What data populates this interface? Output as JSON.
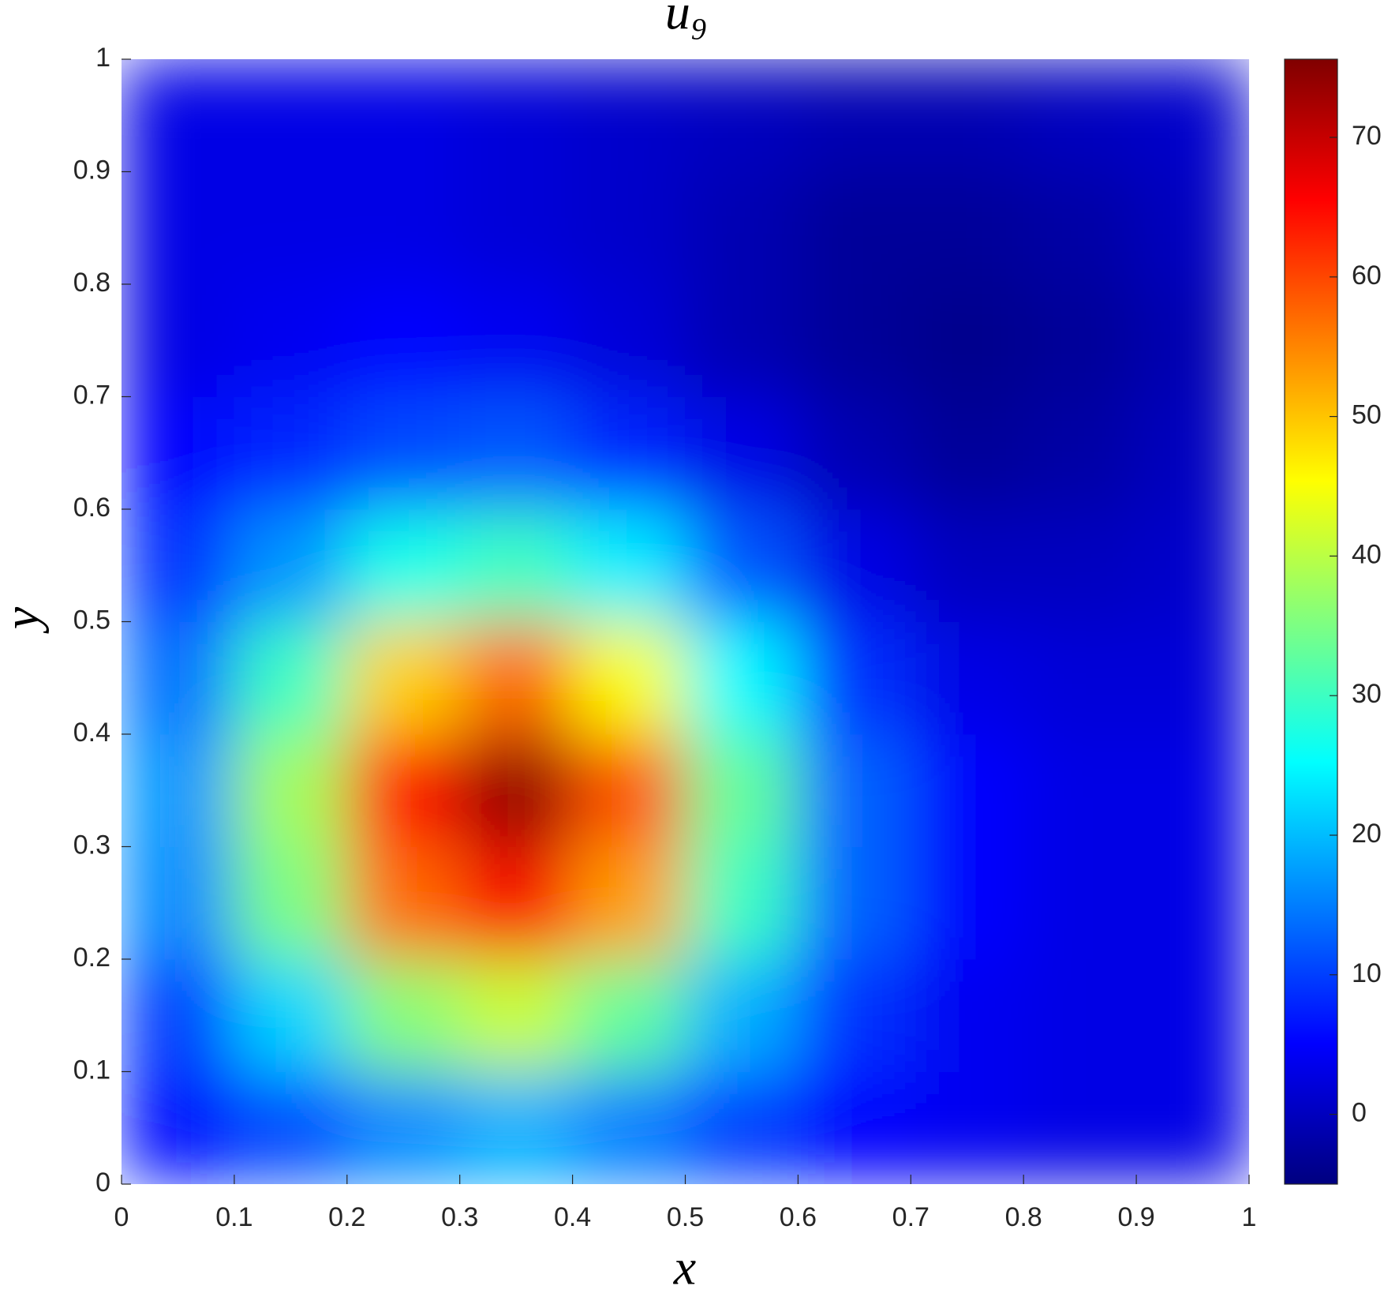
{
  "chart_data": {
    "type": "heatmap",
    "title": "u₉",
    "x_label": "x",
    "y_label": "y",
    "colormap": "jet",
    "x": [
      0.05,
      0.15,
      0.25,
      0.35,
      0.45,
      0.55,
      0.65,
      0.75,
      0.85,
      0.95
    ],
    "y": [
      0.05,
      0.15,
      0.25,
      0.35,
      0.45,
      0.55,
      0.65,
      0.75,
      0.85,
      0.95
    ],
    "z": [
      [
        6,
        11,
        16,
        19,
        15,
        10,
        5,
        4,
        3,
        3
      ],
      [
        10,
        22,
        36,
        41,
        33,
        19,
        9,
        4,
        3,
        3
      ],
      [
        16,
        35,
        57,
        66,
        53,
        30,
        13,
        5,
        3,
        3
      ],
      [
        17,
        38,
        64,
        74,
        59,
        33,
        13,
        5,
        3,
        3
      ],
      [
        14,
        30,
        49,
        57,
        45,
        25,
        9,
        3,
        2,
        2
      ],
      [
        9,
        17,
        27,
        30,
        24,
        12,
        3,
        0,
        0,
        1
      ],
      [
        5,
        8,
        11,
        12,
        8,
        3,
        -1,
        -3,
        -2,
        0
      ],
      [
        3,
        4,
        5,
        4,
        2,
        -1,
        -3,
        -4,
        -3,
        -1
      ],
      [
        3,
        3,
        3,
        2,
        1,
        -1,
        -3,
        -3,
        -2,
        0
      ],
      [
        3,
        3,
        3,
        2,
        1,
        0,
        -1,
        -1,
        0,
        1
      ]
    ],
    "xlim": [
      0,
      1
    ],
    "ylim": [
      0,
      1
    ],
    "xticks": [
      0,
      0.1,
      0.2,
      0.3,
      0.4,
      0.5,
      0.6,
      0.7,
      0.8,
      0.9,
      1
    ],
    "yticks": [
      0,
      0.1,
      0.2,
      0.3,
      0.4,
      0.5,
      0.6,
      0.7,
      0.8,
      0.9,
      1
    ],
    "clim": [
      -5,
      75.6
    ],
    "cticks": [
      0,
      10,
      20,
      30,
      40,
      50,
      60,
      70
    ]
  }
}
